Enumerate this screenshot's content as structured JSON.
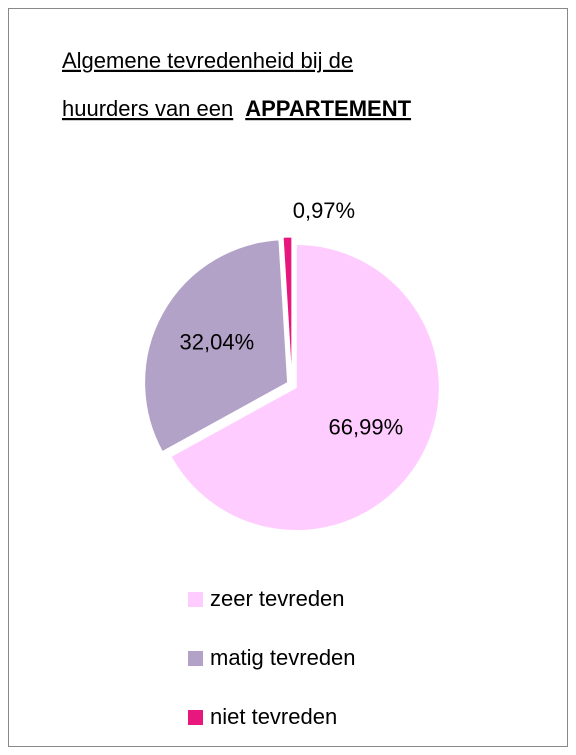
{
  "chart_data": {
    "type": "pie",
    "title": {
      "lines": [
        "Algemene tevredenheid bij de",
        "huurders van een"
      ],
      "emphasis": "APPARTEMENT"
    },
    "categories": [
      "zeer tevreden",
      "matig tevreden",
      "niet tevreden"
    ],
    "values": [
      66.99,
      32.04,
      0.97
    ],
    "value_labels": [
      "66,99%",
      "32,04%",
      "0,97%"
    ],
    "colors": [
      "#ffccff",
      "#b3a2c7",
      "#e8177e"
    ],
    "legend": "bottom"
  }
}
